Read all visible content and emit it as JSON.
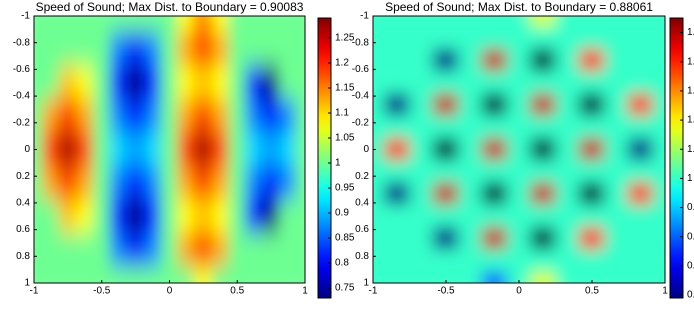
{
  "chart_data": [
    {
      "type": "heatmap",
      "title": "Speed of Sound; Max Dist. to Boundary = 0.90083",
      "colormap": "jet",
      "x": [
        -1,
        -0.875,
        -0.75,
        -0.625,
        -0.5,
        -0.375,
        -0.25,
        -0.125,
        0,
        0.125,
        0.25,
        0.375,
        0.5,
        0.625,
        0.75,
        0.875,
        1
      ],
      "y": [
        -1,
        -0.75,
        -0.5,
        -0.25,
        0,
        0.25,
        0.5,
        0.75,
        1
      ],
      "z": [
        [
          1,
          1,
          1,
          1,
          1,
          1,
          1,
          1,
          1,
          1.08,
          1.15,
          1.08,
          1,
          1,
          1,
          1,
          1
        ],
        [
          1,
          1,
          1,
          1,
          1,
          0.87,
          0.81,
          0.87,
          1,
          1.13,
          1.19,
          1.13,
          1,
          1,
          1,
          1,
          1
        ],
        [
          1,
          1,
          1.11,
          1.08,
          1,
          0.81,
          0.73,
          0.81,
          1,
          1.08,
          1.11,
          1.08,
          1,
          0.81,
          0.73,
          1,
          1
        ],
        [
          1,
          1.13,
          1.19,
          1.13,
          1,
          0.87,
          0.81,
          0.87,
          1,
          1.13,
          1.19,
          1.13,
          1,
          0.87,
          0.81,
          0.87,
          1
        ],
        [
          1,
          1.19,
          1.27,
          1.19,
          1,
          0.92,
          0.89,
          0.92,
          1,
          1.19,
          1.27,
          1.19,
          1,
          0.92,
          0.89,
          0.92,
          1
        ],
        [
          1,
          1.13,
          1.19,
          1.13,
          1,
          0.87,
          0.81,
          0.87,
          1,
          1.13,
          1.19,
          1.13,
          1,
          0.87,
          0.81,
          0.87,
          1
        ],
        [
          1,
          1,
          1.11,
          1.08,
          1,
          0.81,
          0.73,
          0.81,
          1,
          1.08,
          1.11,
          1.08,
          1,
          0.81,
          0.73,
          1,
          1
        ],
        [
          1,
          1,
          1,
          1,
          1,
          0.87,
          0.81,
          0.87,
          1,
          1.13,
          1.19,
          1.13,
          1,
          1,
          1,
          1,
          1
        ],
        [
          1,
          1,
          1,
          1,
          1,
          1,
          1,
          1,
          1,
          1,
          1.08,
          1,
          1,
          1,
          1,
          1,
          1
        ]
      ],
      "xlim": [
        -1,
        1
      ],
      "ylim": [
        -1,
        1
      ],
      "xticks": [
        -1,
        -0.5,
        0,
        0.5,
        1
      ],
      "yticks": [
        -1,
        -0.8,
        -0.6,
        -0.4,
        -0.2,
        0,
        0.2,
        0.4,
        0.6,
        0.8,
        1
      ],
      "clim": [
        0.73,
        1.29
      ],
      "cticks": [
        1.25,
        1.2,
        1.15,
        1.1,
        1.05,
        1,
        0.95,
        0.9,
        0.85,
        0.8,
        0.75
      ]
    },
    {
      "type": "heatmap",
      "title": "Speed of Sound; Max Dist. to Boundary = 0.88061",
      "colormap": "jet",
      "x": [
        -1,
        -0.833,
        -0.667,
        -0.5,
        -0.333,
        -0.167,
        0,
        0.167,
        0.333,
        0.5,
        0.667,
        0.833,
        1
      ],
      "y": [
        -1,
        -0.833,
        -0.667,
        -0.5,
        -0.333,
        -0.167,
        0,
        0.167,
        0.333,
        0.5,
        0.667,
        0.833,
        1
      ],
      "z": [
        [
          1,
          1,
          1,
          1,
          1,
          1,
          1,
          1.08,
          1,
          1,
          1,
          1,
          1
        ],
        [
          1,
          1,
          1,
          1,
          1,
          1,
          1,
          1,
          1,
          1,
          1,
          1,
          1
        ],
        [
          1,
          1,
          1,
          0.8,
          1,
          1.24,
          1,
          0.76,
          1,
          1.2,
          1,
          1,
          1
        ],
        [
          1,
          1,
          1,
          1,
          1,
          1,
          1,
          1,
          1,
          1,
          1,
          1,
          1
        ],
        [
          1,
          0.8,
          1,
          1.24,
          1,
          0.76,
          1,
          1.24,
          1,
          0.76,
          1,
          1.2,
          1
        ],
        [
          1,
          1,
          1,
          1,
          1,
          1,
          1,
          1,
          1,
          1,
          1,
          1,
          1
        ],
        [
          1,
          1.2,
          1,
          0.76,
          1,
          1.24,
          1,
          0.76,
          1,
          1.24,
          1,
          0.8,
          1
        ],
        [
          1,
          1,
          1,
          1,
          1,
          1,
          1,
          1,
          1,
          1,
          1,
          1,
          1
        ],
        [
          1,
          0.8,
          1,
          1.24,
          1,
          0.76,
          1,
          1.24,
          1,
          0.76,
          1,
          1.2,
          1
        ],
        [
          1,
          1,
          1,
          1,
          1,
          1,
          1,
          1,
          1,
          1,
          1,
          1,
          1
        ],
        [
          1,
          1,
          1,
          0.8,
          1,
          1.24,
          1,
          0.76,
          1,
          1.2,
          1,
          1,
          1
        ],
        [
          1,
          1,
          1,
          1,
          1,
          1,
          1,
          1,
          1,
          1,
          1,
          1,
          1
        ],
        [
          1,
          1,
          1,
          1,
          1,
          0.9,
          1,
          1.08,
          1,
          1,
          1,
          1,
          1
        ]
      ],
      "xlim": [
        -1,
        1
      ],
      "ylim": [
        -1,
        1
      ],
      "xticks": [
        -1,
        -0.5,
        0,
        0.5,
        1
      ],
      "yticks": [
        -1,
        -0.8,
        -0.6,
        -0.4,
        -0.2,
        0,
        0.2,
        0.4,
        0.6,
        0.8,
        1
      ],
      "clim": [
        0.795,
        1.275
      ],
      "cticks": [
        1.25,
        1.2,
        1.15,
        1.1,
        1.05,
        1,
        0.95,
        0.9,
        0.85,
        0.8
      ]
    }
  ]
}
